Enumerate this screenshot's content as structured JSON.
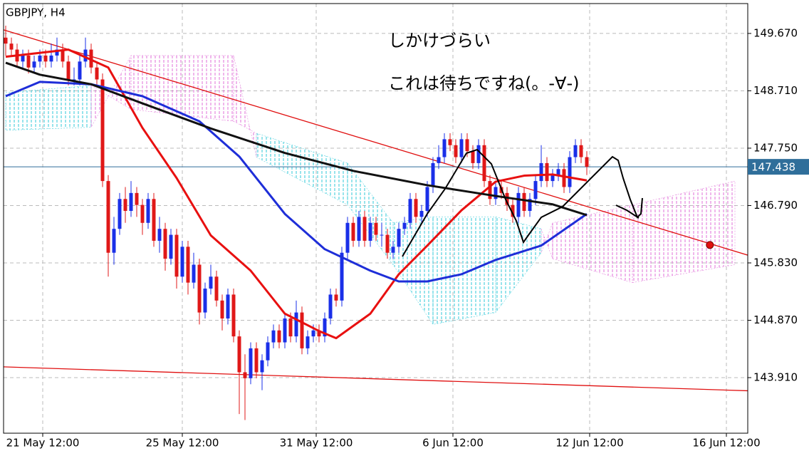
{
  "chart_data": {
    "type": "candlestick",
    "title": "GBPJPY, H4",
    "annotations": [
      "しかけづらい",
      "これは待ちですね(。-∀-)"
    ],
    "ylim": [
      142.98,
      150.17
    ],
    "xlim": [
      -0.375,
      130.25
    ],
    "yticks": [
      {
        "value": 149.67,
        "label": "149.670"
      },
      {
        "value": 148.71,
        "label": "148.710"
      },
      {
        "value": 147.75,
        "label": "147.750"
      },
      {
        "value": 146.79,
        "label": "146.790"
      },
      {
        "value": 145.83,
        "label": "145.830"
      },
      {
        "value": 144.87,
        "label": "144.870"
      },
      {
        "value": 143.91,
        "label": "143.910"
      }
    ],
    "xticks": [
      {
        "value": 6.5,
        "label": "21 May 12:00"
      },
      {
        "value": 31,
        "label": "25 May 12:00"
      },
      {
        "value": 54.5,
        "label": "31 May 12:00"
      },
      {
        "value": 78.5,
        "label": "6 Jun 12:00"
      },
      {
        "value": 102.5,
        "label": "12 Jun 12:00"
      },
      {
        "value": 126.5,
        "label": "16 Jun 12:00"
      }
    ],
    "grid": true,
    "up_color": "#1a2fe8",
    "down_color": "#e01818",
    "current_price": 147.438,
    "current_price_color": "#2f6e9a",
    "ohlc": [
      [
        149.6,
        149.8,
        149.3,
        149.5
      ],
      [
        149.5,
        149.6,
        149.3,
        149.4
      ],
      [
        149.4,
        149.5,
        149.1,
        149.2
      ],
      [
        149.2,
        149.4,
        149.1,
        149.3
      ],
      [
        149.3,
        149.4,
        149.0,
        149.1
      ],
      [
        149.1,
        149.3,
        149.0,
        149.2
      ],
      [
        149.2,
        149.4,
        149.1,
        149.3
      ],
      [
        149.3,
        149.4,
        149.1,
        149.2
      ],
      [
        149.2,
        149.5,
        149.1,
        149.3
      ],
      [
        149.3,
        149.6,
        149.2,
        149.4
      ],
      [
        149.4,
        149.5,
        149.1,
        149.2
      ],
      [
        149.2,
        149.3,
        148.8,
        148.9
      ],
      [
        148.9,
        149.1,
        148.8,
        148.9
      ],
      [
        148.9,
        149.3,
        148.8,
        149.2
      ],
      [
        149.2,
        149.6,
        149.1,
        149.4
      ],
      [
        149.4,
        149.5,
        149.0,
        149.1
      ],
      [
        149.1,
        149.2,
        148.8,
        148.9
      ],
      [
        148.9,
        149.0,
        147.1,
        147.2
      ],
      [
        147.2,
        147.3,
        145.6,
        146.0
      ],
      [
        146.0,
        146.6,
        145.8,
        146.4
      ],
      [
        146.4,
        147.0,
        146.3,
        146.9
      ],
      [
        146.9,
        147.1,
        146.5,
        146.7
      ],
      [
        146.7,
        147.2,
        146.6,
        147.0
      ],
      [
        147.0,
        147.1,
        146.6,
        146.8
      ],
      [
        146.8,
        146.9,
        146.3,
        146.5
      ],
      [
        146.5,
        147.0,
        146.4,
        146.9
      ],
      [
        146.9,
        147.0,
        146.1,
        146.2
      ],
      [
        146.2,
        146.6,
        146.0,
        146.4
      ],
      [
        146.4,
        146.5,
        145.7,
        145.9
      ],
      [
        145.9,
        146.4,
        145.8,
        146.3
      ],
      [
        146.3,
        146.4,
        145.4,
        145.6
      ],
      [
        145.6,
        146.2,
        145.5,
        146.1
      ],
      [
        146.1,
        146.2,
        145.3,
        145.5
      ],
      [
        145.5,
        146.0,
        145.4,
        145.8
      ],
      [
        145.8,
        145.9,
        144.8,
        145.0
      ],
      [
        145.0,
        145.5,
        144.9,
        145.4
      ],
      [
        145.4,
        145.8,
        145.3,
        145.6
      ],
      [
        145.6,
        145.7,
        145.1,
        145.2
      ],
      [
        145.2,
        145.3,
        144.7,
        144.9
      ],
      [
        144.9,
        145.4,
        144.8,
        145.3
      ],
      [
        145.3,
        145.4,
        144.5,
        144.6
      ],
      [
        144.6,
        144.7,
        143.3,
        144.0
      ],
      [
        144.0,
        144.3,
        143.2,
        143.9
      ],
      [
        143.9,
        144.5,
        143.8,
        144.4
      ],
      [
        144.4,
        144.5,
        143.9,
        144.0
      ],
      [
        144.0,
        144.3,
        143.7,
        144.2
      ],
      [
        144.2,
        144.6,
        144.1,
        144.5
      ],
      [
        144.5,
        144.8,
        144.4,
        144.7
      ],
      [
        144.7,
        144.8,
        144.4,
        144.5
      ],
      [
        144.5,
        145.0,
        144.4,
        144.9
      ],
      [
        144.9,
        145.0,
        144.5,
        144.6
      ],
      [
        144.6,
        145.2,
        144.5,
        145.0
      ],
      [
        145.0,
        145.1,
        144.3,
        144.4
      ],
      [
        144.4,
        144.7,
        144.3,
        144.6
      ],
      [
        144.6,
        144.8,
        144.5,
        144.7
      ],
      [
        144.7,
        144.8,
        144.5,
        144.6
      ],
      [
        144.6,
        145.0,
        144.5,
        144.9
      ],
      [
        144.9,
        145.4,
        144.8,
        145.3
      ],
      [
        145.3,
        145.4,
        145.1,
        145.2
      ],
      [
        145.2,
        146.1,
        145.1,
        146.0
      ],
      [
        146.0,
        146.6,
        145.9,
        146.5
      ],
      [
        146.5,
        146.6,
        146.1,
        146.2
      ],
      [
        146.2,
        146.7,
        146.1,
        146.6
      ],
      [
        146.6,
        146.7,
        146.1,
        146.2
      ],
      [
        146.2,
        146.6,
        146.1,
        146.5
      ],
      [
        146.5,
        146.6,
        146.2,
        146.3
      ],
      [
        146.3,
        146.5,
        146.1,
        146.3
      ],
      [
        146.3,
        146.4,
        145.9,
        146.0
      ],
      [
        146.0,
        146.2,
        145.9,
        146.1
      ],
      [
        146.1,
        146.5,
        146.0,
        146.4
      ],
      [
        146.4,
        146.6,
        146.3,
        146.5
      ],
      [
        146.5,
        147.0,
        146.4,
        146.9
      ],
      [
        146.9,
        147.0,
        146.5,
        146.6
      ],
      [
        146.6,
        146.8,
        146.5,
        146.7
      ],
      [
        146.7,
        147.2,
        146.6,
        147.1
      ],
      [
        147.1,
        147.6,
        147.0,
        147.5
      ],
      [
        147.5,
        147.8,
        147.4,
        147.6
      ],
      [
        147.6,
        148.0,
        147.5,
        147.9
      ],
      [
        147.9,
        148.0,
        147.7,
        147.8
      ],
      [
        147.8,
        147.9,
        147.5,
        147.6
      ],
      [
        147.6,
        148.0,
        147.5,
        147.9
      ],
      [
        147.9,
        148.0,
        147.6,
        147.7
      ],
      [
        147.7,
        147.8,
        147.4,
        147.5
      ],
      [
        147.5,
        147.9,
        147.4,
        147.8
      ],
      [
        147.8,
        147.9,
        147.1,
        147.2
      ],
      [
        147.2,
        147.3,
        146.8,
        146.9
      ],
      [
        146.9,
        147.2,
        146.8,
        147.1
      ],
      [
        147.1,
        147.2,
        146.9,
        147.0
      ],
      [
        147.0,
        147.1,
        146.7,
        146.8
      ],
      [
        146.8,
        146.9,
        146.5,
        146.6
      ],
      [
        146.6,
        147.1,
        146.5,
        147.0
      ],
      [
        147.0,
        147.1,
        146.6,
        146.7
      ],
      [
        146.7,
        147.0,
        146.6,
        146.9
      ],
      [
        146.9,
        147.3,
        146.8,
        147.2
      ],
      [
        147.2,
        147.8,
        147.1,
        147.5
      ],
      [
        147.5,
        147.6,
        147.1,
        147.2
      ],
      [
        147.2,
        147.4,
        147.1,
        147.3
      ],
      [
        147.3,
        147.5,
        147.2,
        147.4
      ],
      [
        147.4,
        147.5,
        147.0,
        147.1
      ],
      [
        147.1,
        147.7,
        147.0,
        147.6
      ],
      [
        147.6,
        147.9,
        147.5,
        147.8
      ],
      [
        147.8,
        147.9,
        147.5,
        147.6
      ],
      [
        147.6,
        147.7,
        147.3,
        147.438
      ]
    ],
    "series": [
      {
        "color": "#e81010",
        "x": [
          0,
          11,
          18,
          24,
          30,
          36,
          43,
          49,
          55,
          58,
          64,
          69,
          74,
          80,
          86,
          91,
          96,
          102
        ],
        "values": [
          149.28,
          149.4,
          149.1,
          148.09,
          147.25,
          146.29,
          145.7,
          144.98,
          144.69,
          144.57,
          144.98,
          145.64,
          146.12,
          146.71,
          147.19,
          147.29,
          147.31,
          147.21
        ]
      },
      {
        "color": "#1e2ed8",
        "x": [
          0,
          6,
          15,
          24,
          34,
          41,
          49,
          56,
          64,
          69,
          74,
          80,
          86,
          94,
          102
        ],
        "values": [
          148.62,
          148.86,
          148.82,
          148.62,
          148.2,
          147.61,
          146.65,
          146.06,
          145.7,
          145.52,
          145.52,
          145.64,
          145.88,
          146.12,
          146.65
        ]
      },
      {
        "color": "#111111",
        "x": [
          0,
          6,
          15,
          24,
          36,
          49,
          61,
          74,
          86,
          96,
          102
        ],
        "values": [
          149.18,
          148.98,
          148.82,
          148.5,
          148.08,
          147.67,
          147.37,
          147.13,
          146.95,
          146.81,
          146.63
        ]
      }
    ],
    "cloud": {
      "x": [
        0,
        15,
        22,
        40,
        44,
        60,
        68,
        75,
        86,
        94,
        96,
        110,
        128
      ],
      "span_a": [
        148.68,
        148.8,
        148.4,
        148.2,
        148.0,
        147.5,
        146.5,
        146.6,
        146.6,
        146.4,
        145.9,
        145.5,
        145.8
      ],
      "span_b": [
        148.05,
        148.1,
        149.3,
        149.3,
        147.6,
        146.8,
        145.8,
        144.8,
        145.0,
        146.0,
        146.5,
        146.8,
        147.2
      ],
      "up_color": "#30c8d8",
      "down_color": "#e070d8"
    },
    "trendlines": [
      {
        "color": "#e01010",
        "x": [
          -0.375,
          130.25
        ],
        "y": [
          149.73,
          145.96
        ]
      },
      {
        "color": "#e01010",
        "x": [
          -0.375,
          130.25
        ],
        "y": [
          144.09,
          143.69
        ]
      }
    ],
    "marker": {
      "x": 123.6,
      "y": 146.13,
      "color": "#e01010"
    }
  }
}
